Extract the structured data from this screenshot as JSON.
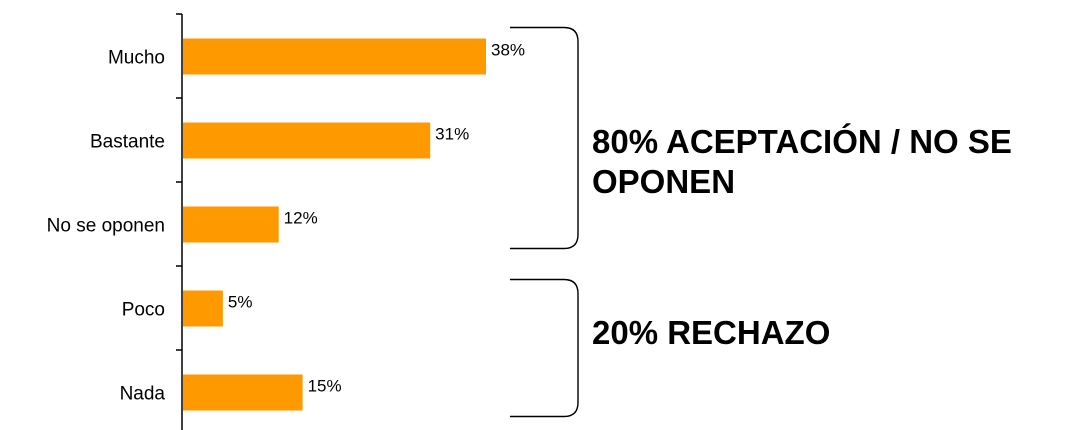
{
  "chart_data": {
    "type": "bar",
    "orientation": "horizontal",
    "categories": [
      "Mucho",
      "Bastante",
      "No se oponen",
      "Poco",
      "Nada"
    ],
    "values": [
      38,
      31,
      12,
      5,
      15
    ],
    "data_labels": [
      "38%",
      "31%",
      "12%",
      "5%",
      "15%"
    ],
    "unit": "%",
    "xlim": [
      0,
      50
    ],
    "grid": false,
    "bar_color": "#FF9900",
    "groups": [
      {
        "label": "80% ACEPTACIÓN / NO SE OPONEN",
        "categories": [
          "Mucho",
          "Bastante",
          "No se oponen"
        ]
      },
      {
        "label": "20% RECHAZO",
        "categories": [
          "Poco",
          "Nada"
        ]
      }
    ]
  }
}
